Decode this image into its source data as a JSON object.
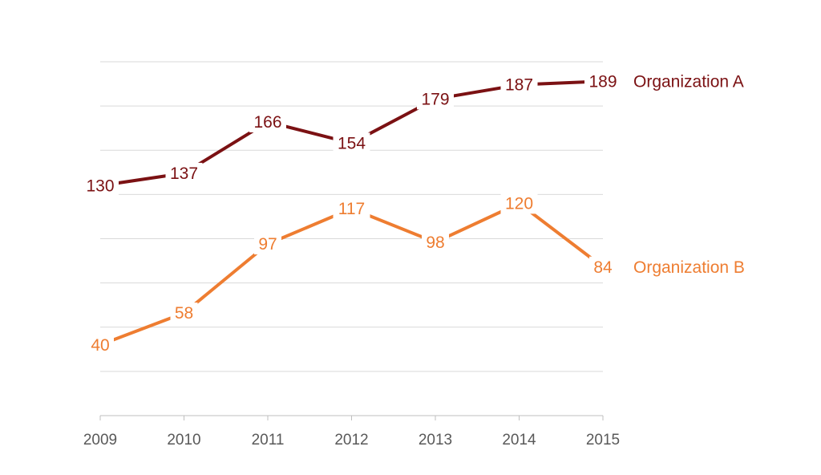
{
  "chart_data": {
    "type": "line",
    "title": "",
    "xlabel": "",
    "ylabel": "",
    "categories": [
      "2009",
      "2010",
      "2011",
      "2012",
      "2013",
      "2014",
      "2015"
    ],
    "ylim": [
      0,
      200
    ],
    "grid": true,
    "y_tick_labels_shown": false,
    "legend": "series names at right end of lines",
    "series": [
      {
        "name": "Organization A",
        "color": "#7b1113",
        "values": [
          130,
          137,
          166,
          154,
          179,
          187,
          189
        ]
      },
      {
        "name": "Organization B",
        "color": "#ee7d31",
        "values": [
          40,
          58,
          97,
          117,
          98,
          120,
          84
        ]
      }
    ]
  }
}
